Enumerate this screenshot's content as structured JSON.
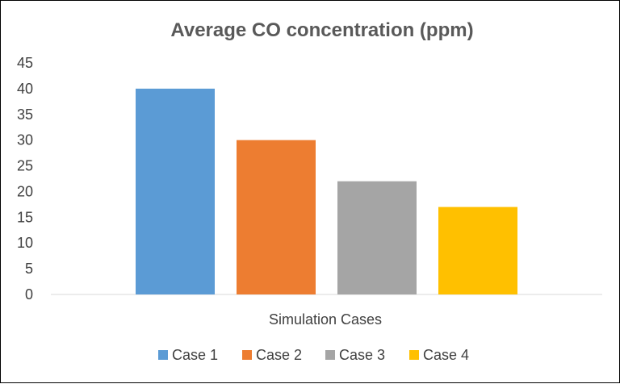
{
  "chart_data": {
    "type": "bar",
    "title": "Average CO concentration (ppm)",
    "xlabel": "Simulation Cases",
    "ylabel": "",
    "ylim": [
      0,
      45
    ],
    "yticks": [
      "0",
      "5",
      "10",
      "15",
      "20",
      "25",
      "30",
      "35",
      "40",
      "45"
    ],
    "grid": false,
    "legend_position": "bottom",
    "series": [
      {
        "name": "Case 1",
        "value": 40,
        "color": "#5B9BD5"
      },
      {
        "name": "Case 2",
        "value": 30,
        "color": "#ED7D31"
      },
      {
        "name": "Case 3",
        "value": 22,
        "color": "#A5A5A5"
      },
      {
        "name": "Case 4",
        "value": 17,
        "color": "#FFC000"
      }
    ]
  }
}
